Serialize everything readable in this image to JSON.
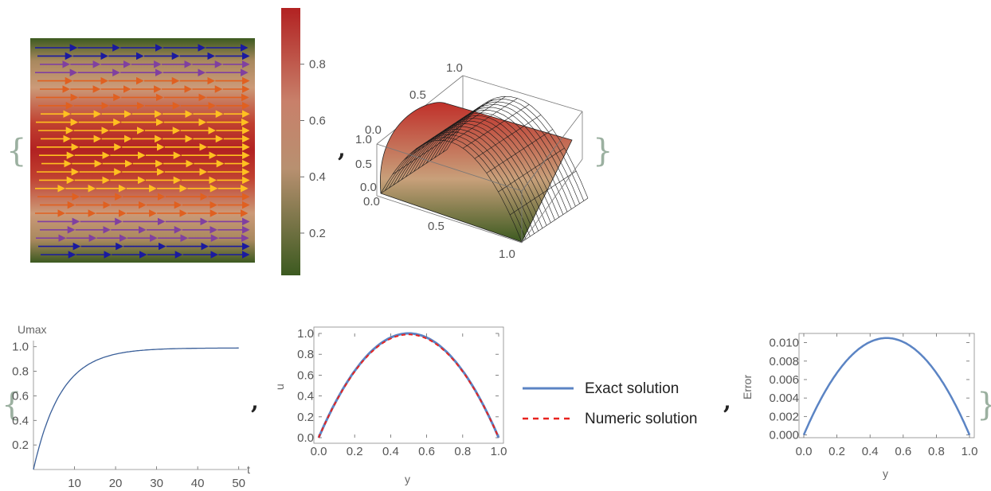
{
  "chart_data": [
    {
      "type": "heatmap",
      "variant": "density-with-stream-arrows",
      "colorbar": {
        "range": [
          0.05,
          1.0
        ],
        "ticks": [
          0.2,
          0.4,
          0.6,
          0.8
        ],
        "tick_labels": [
          "0.2",
          "0.4",
          "0.6",
          "0.8"
        ],
        "colors": [
          "#3c5a20",
          "#c8a07a",
          "#b22222"
        ]
      },
      "field": "u(y) = 4 y (1 - y)",
      "arrow_colors": [
        "#1a1aa0",
        "#8040a0",
        "#e06020",
        "#ffc020"
      ]
    },
    {
      "type": "surface",
      "x_ticks": [
        "0.0",
        "0.5",
        "1.0"
      ],
      "y_ticks": [
        "0.0",
        "0.5",
        "1.0"
      ],
      "z_ticks": [
        "0.0",
        "0.5",
        "1.0"
      ],
      "surface": "u(x, y) = 4 y (1 - y)",
      "colors": [
        "#3c5a20",
        "#c8a07a",
        "#b22222"
      ]
    },
    {
      "type": "line",
      "xlabel": "t",
      "ylabel": "Umax",
      "xlim": [
        0,
        52
      ],
      "ylim": [
        0,
        1.05
      ],
      "x_ticks": [
        10,
        20,
        30,
        40,
        50
      ],
      "y_ticks": [
        0.2,
        0.4,
        0.6,
        0.8,
        1.0
      ],
      "x_tick_labels": [
        "10",
        "20",
        "30",
        "40",
        "50"
      ],
      "y_tick_labels": [
        "0.2",
        "0.4",
        "0.6",
        "0.8",
        "1.0"
      ],
      "series": [
        {
          "color": "#3a5f99",
          "x": [
            0,
            2,
            4,
            6,
            8,
            10,
            12,
            14,
            16,
            18,
            20,
            22,
            25,
            30,
            35,
            40,
            45,
            50
          ],
          "y": [
            0.0,
            0.26,
            0.45,
            0.6,
            0.7,
            0.78,
            0.84,
            0.88,
            0.915,
            0.935,
            0.95,
            0.962,
            0.972,
            0.982,
            0.986,
            0.988,
            0.989,
            0.99
          ]
        }
      ]
    },
    {
      "type": "line",
      "xlabel": "y",
      "ylabel": "u",
      "xlim": [
        0,
        1
      ],
      "ylim": [
        0,
        1
      ],
      "x_ticks": [
        0.0,
        0.2,
        0.4,
        0.6,
        0.8,
        1.0
      ],
      "y_ticks": [
        0.0,
        0.2,
        0.4,
        0.6,
        0.8,
        1.0
      ],
      "x_tick_labels": [
        "0.0",
        "0.2",
        "0.4",
        "0.6",
        "0.8",
        "1.0"
      ],
      "y_tick_labels": [
        "0.0",
        "0.2",
        "0.4",
        "0.6",
        "0.8",
        "1.0"
      ],
      "series": [
        {
          "name": "Exact solution",
          "color": "#5b84c4",
          "dash": "solid",
          "x": [
            0,
            0.1,
            0.2,
            0.3,
            0.4,
            0.5,
            0.6,
            0.7,
            0.8,
            0.9,
            1.0
          ],
          "y": [
            0,
            0.36,
            0.64,
            0.84,
            0.96,
            1.0,
            0.96,
            0.84,
            0.64,
            0.36,
            0
          ]
        },
        {
          "name": "Numeric solution",
          "color": "#e8231f",
          "dash": "dashed",
          "x": [
            0,
            0.1,
            0.2,
            0.3,
            0.4,
            0.5,
            0.6,
            0.7,
            0.8,
            0.9,
            1.0
          ],
          "y": [
            0,
            0.357,
            0.634,
            0.832,
            0.951,
            0.99,
            0.951,
            0.832,
            0.634,
            0.357,
            0
          ]
        }
      ]
    },
    {
      "type": "line",
      "xlabel": "y",
      "ylabel": "Error",
      "xlim": [
        0,
        1
      ],
      "ylim": [
        -0.0003,
        0.011
      ],
      "x_ticks": [
        0.0,
        0.2,
        0.4,
        0.6,
        0.8,
        1.0
      ],
      "y_ticks": [
        0.0,
        0.002,
        0.004,
        0.006,
        0.008,
        0.01
      ],
      "x_tick_labels": [
        "0.0",
        "0.2",
        "0.4",
        "0.6",
        "0.8",
        "1.0"
      ],
      "y_tick_labels": [
        "0.000",
        "0.002",
        "0.004",
        "0.006",
        "0.008",
        "0.010"
      ],
      "series": [
        {
          "color": "#5b84c4",
          "x": [
            0,
            0.1,
            0.2,
            0.3,
            0.4,
            0.5,
            0.6,
            0.7,
            0.8,
            0.9,
            1.0
          ],
          "y": [
            0,
            0.0038,
            0.0067,
            0.0088,
            0.01,
            0.0105,
            0.01,
            0.0088,
            0.0067,
            0.0038,
            0
          ]
        }
      ]
    }
  ],
  "delimiters": {
    "open_brace": "{",
    "close_brace": "}",
    "comma": ","
  }
}
